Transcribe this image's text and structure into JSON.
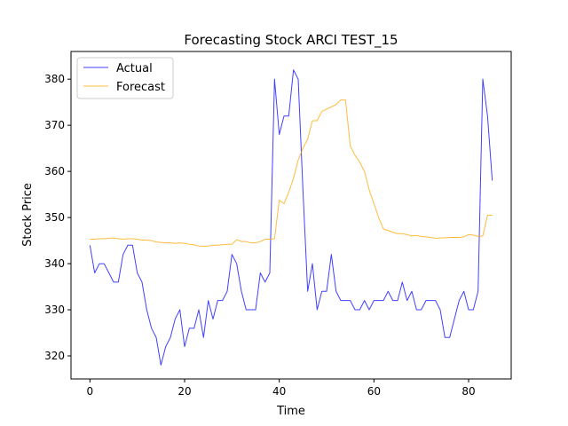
{
  "chart_data": {
    "type": "line",
    "title": "Forecasting Stock ARCI TEST_15",
    "xlabel": "Time",
    "ylabel": "Stock Price",
    "xlim": [
      -4,
      89
    ],
    "ylim": [
      315,
      386
    ],
    "xticks": [
      0,
      20,
      40,
      60,
      80
    ],
    "yticks": [
      320,
      330,
      340,
      350,
      360,
      370,
      380
    ],
    "grid": false,
    "legend_position": "top-left",
    "series": [
      {
        "name": "Actual",
        "color": "#0000ff",
        "x": [
          0,
          1,
          2,
          3,
          4,
          5,
          6,
          7,
          8,
          9,
          10,
          11,
          12,
          13,
          14,
          15,
          16,
          17,
          18,
          19,
          20,
          21,
          22,
          23,
          24,
          25,
          26,
          27,
          28,
          29,
          30,
          31,
          32,
          33,
          34,
          35,
          36,
          37,
          38,
          39,
          40,
          41,
          42,
          43,
          44,
          45,
          46,
          47,
          48,
          49,
          50,
          51,
          52,
          53,
          54,
          55,
          56,
          57,
          58,
          59,
          60,
          61,
          62,
          63,
          64,
          65,
          66,
          67,
          68,
          69,
          70,
          71,
          72,
          73,
          74,
          75,
          76,
          77,
          78,
          79,
          80,
          81,
          82,
          83,
          84,
          85
        ],
        "values": [
          344,
          338,
          340,
          340,
          338,
          336,
          336,
          342,
          344,
          344,
          338,
          336,
          330,
          326,
          324,
          318,
          322,
          324,
          328,
          330,
          322,
          326,
          326,
          330,
          324,
          332,
          328,
          332,
          332,
          334,
          342,
          340,
          334,
          330,
          330,
          330,
          338,
          336,
          338,
          380,
          368,
          372,
          372,
          382,
          380,
          356,
          334,
          340,
          330,
          334,
          334,
          342,
          334,
          332,
          332,
          332,
          330,
          330,
          332,
          330,
          332,
          332,
          332,
          334,
          332,
          332,
          336,
          332,
          334,
          330,
          330,
          332,
          332,
          332,
          330,
          324,
          324,
          328,
          332,
          334,
          330,
          330,
          334,
          380,
          372,
          358
        ]
      },
      {
        "name": "Forecast",
        "color": "#ffa500",
        "x": [
          0,
          1,
          2,
          3,
          4,
          5,
          6,
          7,
          8,
          9,
          10,
          11,
          12,
          13,
          14,
          15,
          16,
          17,
          18,
          19,
          20,
          21,
          22,
          23,
          24,
          25,
          26,
          27,
          28,
          29,
          30,
          31,
          32,
          33,
          34,
          35,
          36,
          37,
          38,
          39,
          40,
          41,
          42,
          43,
          44,
          45,
          46,
          47,
          48,
          49,
          50,
          51,
          52,
          53,
          54,
          55,
          56,
          57,
          58,
          59,
          60,
          61,
          62,
          63,
          64,
          65,
          66,
          67,
          68,
          69,
          70,
          71,
          72,
          73,
          74,
          75,
          76,
          77,
          78,
          79,
          80,
          81,
          82,
          83,
          84,
          85
        ],
        "values": [
          345.3,
          345.3,
          345.4,
          345.4,
          345.5,
          345.6,
          345.4,
          345.3,
          345.4,
          345.4,
          345.3,
          345.1,
          345.1,
          345.0,
          344.7,
          344.6,
          344.5,
          344.5,
          344.4,
          344.5,
          344.4,
          344.2,
          344.1,
          343.8,
          343.8,
          343.8,
          344.0,
          344.0,
          344.1,
          344.2,
          344.2,
          345.2,
          344.8,
          344.8,
          344.5,
          344.5,
          344.8,
          345.3,
          345.3,
          345.4,
          353.8,
          353.0,
          355.5,
          358.5,
          362.5,
          365.0,
          367.0,
          371.0,
          371.0,
          373.0,
          373.5,
          374.0,
          374.5,
          375.5,
          375.5,
          365.5,
          363.5,
          362.0,
          360.0,
          356.0,
          353.0,
          350.0,
          347.5,
          347.2,
          346.8,
          346.5,
          346.5,
          346.3,
          346.0,
          346.1,
          345.9,
          345.8,
          345.7,
          345.5,
          345.6,
          345.6,
          345.7,
          345.7,
          345.7,
          345.8,
          346.3,
          346.2,
          345.9,
          346.0,
          350.5,
          350.5
        ]
      }
    ]
  }
}
